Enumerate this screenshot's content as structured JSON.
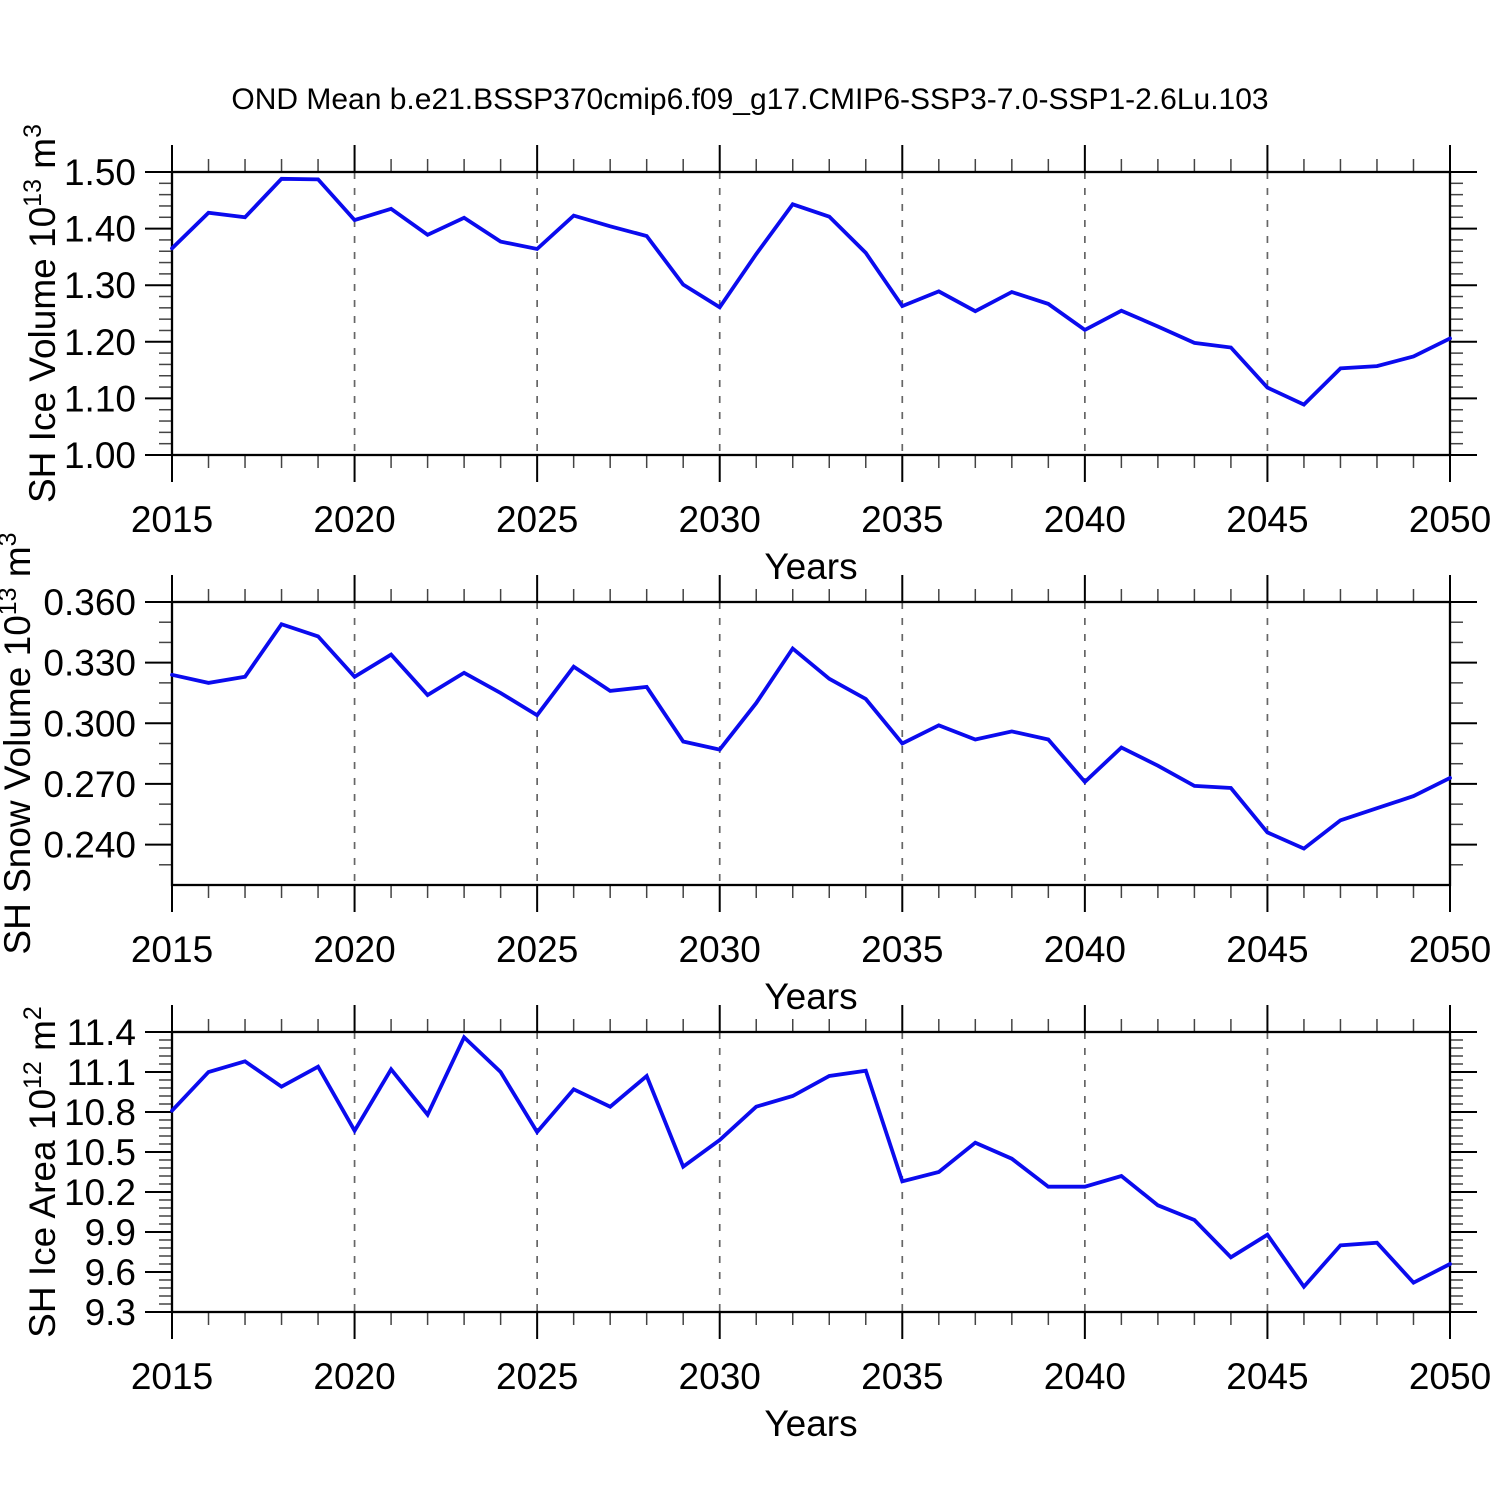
{
  "title": "OND Mean b.e21.BSSP370cmip6.f09_g17.CMIP6-SSP3-7.0-SSP1-2.6Lu.103",
  "colors": {
    "line": "#0b0bee",
    "grid": "#666666",
    "axis": "#000000",
    "minor_tick": "#444444"
  },
  "years": [
    2015,
    2016,
    2017,
    2018,
    2019,
    2020,
    2021,
    2022,
    2023,
    2024,
    2025,
    2026,
    2027,
    2028,
    2029,
    2030,
    2031,
    2032,
    2033,
    2034,
    2035,
    2036,
    2037,
    2038,
    2039,
    2040,
    2041,
    2042,
    2043,
    2044,
    2045,
    2046,
    2047,
    2048,
    2049,
    2050
  ],
  "chart_data": [
    {
      "type": "line",
      "name": "sh-ice-volume",
      "ylabel": {
        "base": "SH Ice Volume 10",
        "exp": "13",
        "unit": " m",
        "unit_exp": "3"
      },
      "xlabel": "Years",
      "ylim": [
        1.0,
        1.5
      ],
      "yticks": {
        "values": [
          1.5,
          1.4,
          1.3,
          1.2,
          1.1,
          1.0
        ],
        "labels": [
          "1.50",
          "1.40",
          "1.30",
          "1.20",
          "1.10",
          "1.00"
        ]
      },
      "yminor_step": 0.02,
      "xticks": {
        "values": [
          2015,
          2020,
          2025,
          2030,
          2035,
          2040,
          2045,
          2050
        ],
        "labels": [
          "2015",
          "2020",
          "2025",
          "2030",
          "2035",
          "2040",
          "2045",
          "2050"
        ]
      },
      "grid_years": [
        2020,
        2025,
        2030,
        2035,
        2040,
        2045
      ],
      "values": [
        1.365,
        1.428,
        1.42,
        1.488,
        1.487,
        1.415,
        1.435,
        1.389,
        1.419,
        1.377,
        1.364,
        1.423,
        1.404,
        1.387,
        1.301,
        1.261,
        1.355,
        1.443,
        1.421,
        1.357,
        1.263,
        1.289,
        1.254,
        1.288,
        1.267,
        1.221,
        1.255,
        1.227,
        1.198,
        1.19,
        1.119,
        1.089,
        1.153,
        1.157,
        1.174,
        1.206
      ]
    },
    {
      "type": "line",
      "name": "sh-snow-volume",
      "ylabel": {
        "base": "SH Snow Volume 10",
        "exp": "13",
        "unit": " m",
        "unit_exp": "3"
      },
      "xlabel": "Years",
      "ylim": [
        0.22,
        0.36
      ],
      "yticks": {
        "values": [
          0.36,
          0.33,
          0.3,
          0.27,
          0.24
        ],
        "labels": [
          "0.360",
          "0.330",
          "0.300",
          "0.270",
          "0.240"
        ]
      },
      "yminor_step": 0.01,
      "xticks": {
        "values": [
          2015,
          2020,
          2025,
          2030,
          2035,
          2040,
          2045,
          2050
        ],
        "labels": [
          "2015",
          "2020",
          "2025",
          "2030",
          "2035",
          "2040",
          "2045",
          "2050"
        ]
      },
      "grid_years": [
        2020,
        2025,
        2030,
        2035,
        2040,
        2045
      ],
      "values": [
        0.324,
        0.32,
        0.323,
        0.349,
        0.343,
        0.323,
        0.334,
        0.314,
        0.325,
        0.315,
        0.304,
        0.328,
        0.316,
        0.318,
        0.291,
        0.287,
        0.31,
        0.337,
        0.322,
        0.312,
        0.29,
        0.299,
        0.292,
        0.296,
        0.292,
        0.271,
        0.288,
        0.279,
        0.269,
        0.268,
        0.246,
        0.238,
        0.252,
        0.258,
        0.264,
        0.273
      ]
    },
    {
      "type": "line",
      "name": "sh-ice-area",
      "ylabel": {
        "base": "SH Ice Area 10",
        "exp": "12",
        "unit": " m",
        "unit_exp": "2"
      },
      "xlabel": "Years",
      "ylim": [
        9.3,
        11.4
      ],
      "yticks": {
        "values": [
          11.4,
          11.1,
          10.8,
          10.5,
          10.2,
          9.9,
          9.6,
          9.3
        ],
        "labels": [
          "11.4",
          "11.1",
          "10.8",
          "10.5",
          "10.2",
          "9.9",
          "9.6",
          "9.3"
        ]
      },
      "yminor_step": 0.06,
      "xticks": {
        "values": [
          2015,
          2020,
          2025,
          2030,
          2035,
          2040,
          2045,
          2050
        ],
        "labels": [
          "2015",
          "2020",
          "2025",
          "2030",
          "2035",
          "2040",
          "2045",
          "2050"
        ]
      },
      "grid_years": [
        2020,
        2025,
        2030,
        2035,
        2040,
        2045
      ],
      "values": [
        10.81,
        11.1,
        11.18,
        10.99,
        11.14,
        10.66,
        11.12,
        10.78,
        11.36,
        11.1,
        10.65,
        10.97,
        10.84,
        11.07,
        10.39,
        10.59,
        10.84,
        10.92,
        11.07,
        11.11,
        10.28,
        10.35,
        10.57,
        10.45,
        10.24,
        10.24,
        10.32,
        10.1,
        9.99,
        9.71,
        9.88,
        9.49,
        9.8,
        9.82,
        9.52,
        9.66
      ]
    }
  ]
}
